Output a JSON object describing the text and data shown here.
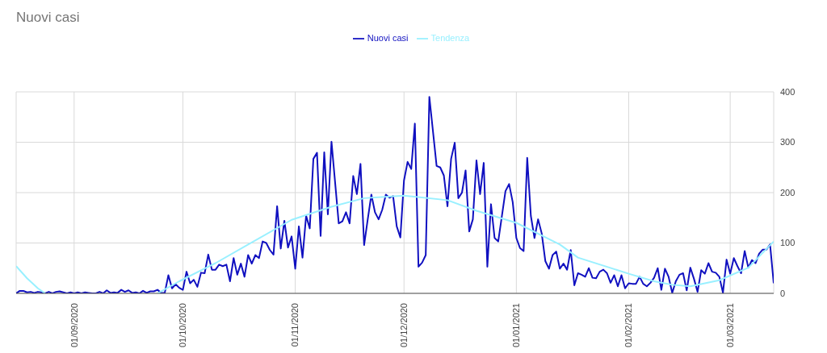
{
  "chart_data": {
    "type": "line",
    "title": "Nuovi casi",
    "legend": "top",
    "grid": true,
    "xlim": [
      "2020-08-16",
      "2021-03-13"
    ],
    "xticks": [
      {
        "value": "2020-09-01",
        "label": "01/09/2020"
      },
      {
        "value": "2020-10-01",
        "label": "01/10/2020"
      },
      {
        "value": "2020-11-01",
        "label": "01/11/2020"
      },
      {
        "value": "2020-12-01",
        "label": "01/12/2020"
      },
      {
        "value": "2021-01-01",
        "label": "01/01/2021"
      },
      {
        "value": "2021-02-01",
        "label": "01/02/2021"
      },
      {
        "value": "2021-03-01",
        "label": "01/03/2021"
      }
    ],
    "ylim": [
      0,
      400
    ],
    "yticks": [
      0,
      100,
      200,
      300,
      400
    ],
    "series": [
      {
        "name": "Nuovi casi",
        "color": "#1010c0",
        "x": [
          "2020-08-16",
          "2020-08-17",
          "2020-08-18",
          "2020-08-19",
          "2020-08-20",
          "2020-08-21",
          "2020-08-22",
          "2020-08-23",
          "2020-08-24",
          "2020-08-25",
          "2020-08-26",
          "2020-08-27",
          "2020-08-28",
          "2020-08-29",
          "2020-08-30",
          "2020-08-31",
          "2020-09-01",
          "2020-09-02",
          "2020-09-03",
          "2020-09-04",
          "2020-09-05",
          "2020-09-06",
          "2020-09-07",
          "2020-09-08",
          "2020-09-09",
          "2020-09-10",
          "2020-09-11",
          "2020-09-12",
          "2020-09-13",
          "2020-09-14",
          "2020-09-15",
          "2020-09-16",
          "2020-09-17",
          "2020-09-18",
          "2020-09-19",
          "2020-09-20",
          "2020-09-21",
          "2020-09-22",
          "2020-09-23",
          "2020-09-24",
          "2020-09-25",
          "2020-09-26",
          "2020-09-27",
          "2020-09-28",
          "2020-09-29",
          "2020-09-30",
          "2020-10-01",
          "2020-10-02",
          "2020-10-03",
          "2020-10-04",
          "2020-10-05",
          "2020-10-06",
          "2020-10-07",
          "2020-10-08",
          "2020-10-09",
          "2020-10-10",
          "2020-10-11",
          "2020-10-12",
          "2020-10-13",
          "2020-10-14",
          "2020-10-15",
          "2020-10-16",
          "2020-10-17",
          "2020-10-18",
          "2020-10-19",
          "2020-10-20",
          "2020-10-21",
          "2020-10-22",
          "2020-10-23",
          "2020-10-24",
          "2020-10-25",
          "2020-10-26",
          "2020-10-27",
          "2020-10-28",
          "2020-10-29",
          "2020-10-30",
          "2020-10-31",
          "2020-11-01",
          "2020-11-02",
          "2020-11-03",
          "2020-11-04",
          "2020-11-05",
          "2020-11-06",
          "2020-11-07",
          "2020-11-08",
          "2020-11-09",
          "2020-11-10",
          "2020-11-11",
          "2020-11-13",
          "2020-11-14",
          "2020-11-15",
          "2020-11-16",
          "2020-11-17",
          "2020-11-18",
          "2020-11-19",
          "2020-11-20",
          "2020-11-21",
          "2020-11-22",
          "2020-11-23",
          "2020-11-24",
          "2020-11-25",
          "2020-11-26",
          "2020-11-27",
          "2020-11-28",
          "2020-11-29",
          "2020-11-30",
          "2020-12-01",
          "2020-12-02",
          "2020-12-03",
          "2020-12-04",
          "2020-12-05",
          "2020-12-06",
          "2020-12-07",
          "2020-12-08",
          "2020-12-10",
          "2020-12-11",
          "2020-12-12",
          "2020-12-13",
          "2020-12-14",
          "2020-12-15",
          "2020-12-16",
          "2020-12-17",
          "2020-12-18",
          "2020-12-19",
          "2020-12-20",
          "2020-12-21",
          "2020-12-22",
          "2020-12-23",
          "2020-12-24",
          "2020-12-25",
          "2020-12-26",
          "2020-12-27",
          "2020-12-28",
          "2020-12-29",
          "2020-12-30",
          "2020-12-31",
          "2021-01-01",
          "2021-01-02",
          "2021-01-03",
          "2021-01-04",
          "2021-01-05",
          "2021-01-06",
          "2021-01-07",
          "2021-01-08",
          "2021-01-09",
          "2021-01-10",
          "2021-01-11",
          "2021-01-12",
          "2021-01-13",
          "2021-01-14",
          "2021-01-15",
          "2021-01-16",
          "2021-01-17",
          "2021-01-18",
          "2021-01-19",
          "2021-01-20",
          "2021-01-21",
          "2021-01-22",
          "2021-01-23",
          "2021-01-24",
          "2021-01-25",
          "2021-01-26",
          "2021-01-27",
          "2021-01-28",
          "2021-01-29",
          "2021-01-30",
          "2021-01-31",
          "2021-02-01",
          "2021-02-02",
          "2021-02-03",
          "2021-02-04",
          "2021-02-05",
          "2021-02-06",
          "2021-02-07",
          "2021-02-08",
          "2021-02-09",
          "2021-02-10",
          "2021-02-11",
          "2021-02-12",
          "2021-02-13",
          "2021-02-14",
          "2021-02-15",
          "2021-02-16",
          "2021-02-17",
          "2021-02-18",
          "2021-02-19",
          "2021-02-20",
          "2021-02-21",
          "2021-02-22",
          "2021-02-23",
          "2021-02-24",
          "2021-02-25",
          "2021-02-26",
          "2021-02-27",
          "2021-02-28",
          "2021-03-01",
          "2021-03-02",
          "2021-03-03",
          "2021-03-04",
          "2021-03-05",
          "2021-03-06",
          "2021-03-07",
          "2021-03-08",
          "2021-03-09",
          "2021-03-10",
          "2021-03-11",
          "2021-03-12",
          "2021-03-13"
        ],
        "values": [
          0,
          5,
          5,
          2,
          3,
          1,
          3,
          2,
          0,
          3,
          0,
          3,
          4,
          2,
          0,
          2,
          0,
          2,
          0,
          2,
          1,
          0,
          0,
          3,
          0,
          6,
          1,
          2,
          1,
          7,
          3,
          6,
          1,
          2,
          0,
          5,
          1,
          4,
          4,
          7,
          1,
          1,
          36,
          10,
          18,
          11,
          7,
          43,
          20,
          27,
          13,
          41,
          40,
          77,
          47,
          47,
          57,
          54,
          57,
          24,
          70,
          37,
          59,
          33,
          76,
          59,
          76,
          70,
          103,
          100,
          86,
          77,
          173,
          89,
          144,
          91,
          113,
          49,
          133,
          71,
          154,
          129,
          267,
          279,
          114,
          280,
          157,
          301,
          139,
          143,
          161,
          139,
          233,
          197,
          257,
          96,
          147,
          196,
          161,
          147,
          166,
          196,
          190,
          193,
          133,
          111,
          224,
          261,
          247,
          337,
          53,
          61,
          76,
          390,
          253,
          250,
          234,
          173,
          267,
          299,
          189,
          200,
          244,
          123,
          147,
          264,
          197,
          259,
          53,
          177,
          110,
          103,
          153,
          203,
          217,
          181,
          110,
          90,
          84,
          269,
          154,
          110,
          147,
          119,
          64,
          49,
          76,
          83,
          49,
          59,
          47,
          86,
          16,
          40,
          37,
          33,
          50,
          31,
          30,
          43,
          47,
          40,
          21,
          36,
          14,
          36,
          10,
          20,
          19,
          19,
          33,
          19,
          14,
          21,
          31,
          50,
          7,
          49,
          33,
          1,
          24,
          37,
          40,
          6,
          51,
          29,
          3,
          46,
          39,
          60,
          43,
          41,
          33,
          1,
          67,
          39,
          70,
          54,
          40,
          84,
          51,
          66,
          60,
          79,
          87,
          87,
          97,
          20
        ]
      },
      {
        "name": "Tendenza",
        "color": "#99f0ff",
        "x": [
          "2020-08-16",
          "2020-08-19",
          "2020-08-22",
          "2020-08-24",
          "2020-09-08",
          "2020-09-24",
          "2020-09-30",
          "2020-10-10",
          "2020-10-19",
          "2020-10-31",
          "2020-11-11",
          "2020-11-20",
          "2020-12-01",
          "2020-12-13",
          "2020-12-21",
          "2021-01-01",
          "2021-01-13",
          "2021-01-18",
          "2021-02-01",
          "2021-02-08",
          "2021-02-13",
          "2021-02-18",
          "2021-02-26",
          "2021-03-06",
          "2021-03-13"
        ],
        "values": [
          54,
          30,
          10,
          0,
          null,
          0,
          24,
          60,
          97,
          146,
          172,
          189,
          194,
          185,
          164,
          140,
          97,
          71,
          39,
          24,
          17,
          14,
          26,
          51,
          103
        ]
      }
    ]
  }
}
